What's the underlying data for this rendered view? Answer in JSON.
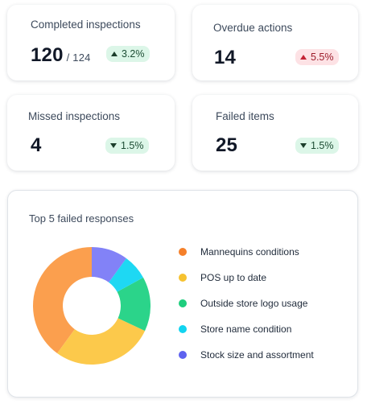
{
  "cards": {
    "completed": {
      "title": "Completed inspections",
      "value": "120",
      "total": "/ 124",
      "change": "3.2%",
      "direction": "up",
      "sentiment": "positive"
    },
    "overdue": {
      "title": "Overdue actions",
      "value": "14",
      "change": "5.5%",
      "direction": "up",
      "sentiment": "negative"
    },
    "missed": {
      "title": "Missed inspections",
      "value": "4",
      "change": "1.5%",
      "direction": "down",
      "sentiment": "positive"
    },
    "failed": {
      "title": "Failed items",
      "value": "25",
      "change": "1.5%",
      "direction": "down",
      "sentiment": "positive"
    }
  },
  "chart_data": {
    "type": "pie",
    "variant": "donut",
    "title": "Top 5 failed responses",
    "legend": "right",
    "categories": [
      "Mannequins conditions",
      "POS up to date",
      "Outside store logo usage",
      "Store name condition",
      "Stock size and assortment"
    ],
    "values": [
      40,
      28,
      15,
      7,
      10
    ],
    "colors": [
      "#fb9f4e",
      "#fcc94b",
      "#2bd48a",
      "#1ed8f3",
      "#8282f7"
    ],
    "legend_dot_colors": [
      "#f5802a",
      "#f6c230",
      "#1fce7e",
      "#12d4f0",
      "#5e62ef"
    ]
  }
}
